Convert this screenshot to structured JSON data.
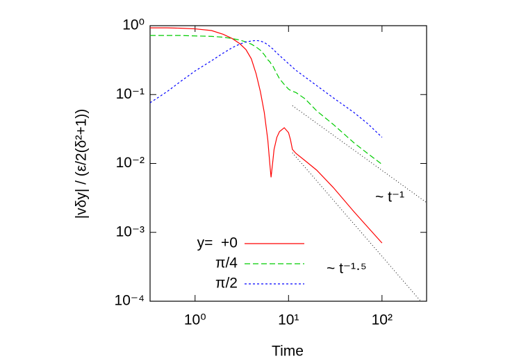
{
  "chart_data": {
    "type": "line",
    "xlabel": "Time",
    "ylabel": "|vδy| / (ε/2(δ²+1))",
    "log_x": true,
    "log_y": true,
    "xlim": [
      0.33,
      300
    ],
    "ylim": [
      0.0001,
      1
    ],
    "xticks": [
      {
        "value": 1,
        "label": "10⁰"
      },
      {
        "value": 10,
        "label": "10¹"
      },
      {
        "value": 100,
        "label": "10²"
      }
    ],
    "yticks": [
      {
        "value": 1,
        "label": "10⁰"
      },
      {
        "value": 0.1,
        "label": "10⁻¹"
      },
      {
        "value": 0.01,
        "label": "10⁻²"
      },
      {
        "value": 0.001,
        "label": "10⁻³"
      },
      {
        "value": 0.0001,
        "label": "10⁻⁴"
      }
    ],
    "x": [
      0.33,
      0.5,
      0.7,
      1,
      1.5,
      2,
      2.5,
      3,
      3.5,
      4,
      4.5,
      5,
      5.5,
      6,
      6.3,
      6.5,
      6.8,
      7,
      7.5,
      8,
      9,
      10,
      10.5,
      11,
      12,
      15,
      20,
      30,
      50,
      70,
      100
    ],
    "series": [
      {
        "name": "y=  +0",
        "color": "#ff0000",
        "dash": "none",
        "values": [
          0.93,
          0.93,
          0.92,
          0.9,
          0.85,
          0.75,
          0.65,
          0.55,
          0.45,
          0.33,
          0.2,
          0.11,
          0.055,
          0.022,
          0.01,
          0.0063,
          0.011,
          0.016,
          0.024,
          0.029,
          0.033,
          0.028,
          0.022,
          0.016,
          0.014,
          0.011,
          0.008,
          0.0045,
          0.002,
          0.0012,
          0.0007
        ]
      },
      {
        "name": "π/4",
        "color": "#00cc00",
        "dash": "8 4",
        "values": [
          0.72,
          0.72,
          0.72,
          0.71,
          0.7,
          0.68,
          0.65,
          0.62,
          0.58,
          0.54,
          0.49,
          0.44,
          0.38,
          0.32,
          0.3,
          0.28,
          0.26,
          0.24,
          0.2,
          0.17,
          0.14,
          0.12,
          0.115,
          0.112,
          0.107,
          0.087,
          0.058,
          0.037,
          0.02,
          0.014,
          0.0097
        ]
      },
      {
        "name": "π/2",
        "color": "#0000ff",
        "dash": "3 3",
        "values": [
          0.076,
          0.11,
          0.155,
          0.22,
          0.31,
          0.4,
          0.48,
          0.54,
          0.58,
          0.6,
          0.61,
          0.6,
          0.57,
          0.53,
          0.5,
          0.48,
          0.46,
          0.44,
          0.4,
          0.37,
          0.32,
          0.28,
          0.265,
          0.25,
          0.225,
          0.18,
          0.135,
          0.09,
          0.055,
          0.038,
          0.024
        ]
      }
    ],
    "reference_lines": [
      {
        "x": [
          11,
          300
        ],
        "values": [
          0.069,
          0.0027
        ],
        "color": "#000000"
      },
      {
        "x": [
          11,
          260
        ],
        "values": [
          0.0143,
          0.0001
        ],
        "color": "#000000"
      }
    ],
    "annotations": [
      "~ t⁻¹",
      "~ t⁻¹·⁵"
    ],
    "legend": "lower left"
  }
}
